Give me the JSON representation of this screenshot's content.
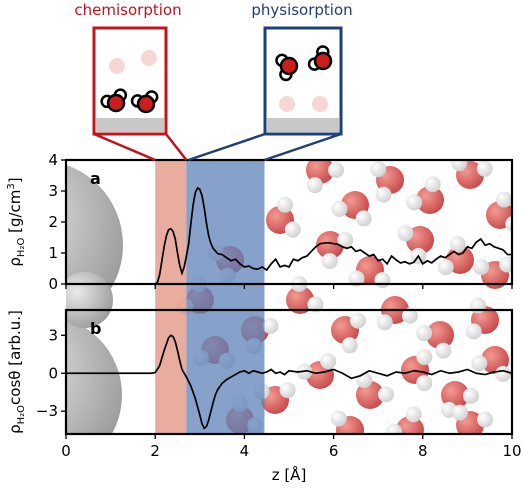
{
  "insets": {
    "chemisorption_label": "chemisorption",
    "physisorption_label": "physisorption",
    "chemisorption_color": "#c0141c",
    "physisorption_color": "#1f3f7a"
  },
  "colors": {
    "chem_band": "#e08a78",
    "phys_band": "#5d82b8",
    "line": "#000000",
    "oxygen": "#d03030",
    "hydrogen": "#f2f2f2",
    "surface_atom": "#9c9c9c"
  },
  "chart_data": [
    {
      "type": "line",
      "panel_label": "a",
      "ylabel_main": "ρ",
      "ylabel_sub": "H₂O",
      "ylabel_unit": " [g/cm",
      "ylabel_unit_sup": "3",
      "ylabel_unit_close": "]",
      "xlim": [
        0,
        10
      ],
      "ylim": [
        0,
        4
      ],
      "yticks": [
        "0",
        "1",
        "2",
        "3",
        "4"
      ],
      "bands": [
        {
          "name": "chemisorption",
          "x0": 2.0,
          "x1": 2.7
        },
        {
          "name": "physisorption",
          "x0": 2.7,
          "x1": 4.45
        }
      ],
      "x": [
        2.0,
        2.05,
        2.1,
        2.15,
        2.2,
        2.25,
        2.3,
        2.35,
        2.4,
        2.45,
        2.5,
        2.55,
        2.6,
        2.65,
        2.7,
        2.75,
        2.8,
        2.85,
        2.9,
        2.95,
        3.0,
        3.05,
        3.1,
        3.15,
        3.2,
        3.25,
        3.3,
        3.4,
        3.5,
        3.6,
        3.7,
        3.8,
        3.9,
        4.0,
        4.1,
        4.2,
        4.3,
        4.4,
        4.5,
        4.6,
        4.7,
        4.8,
        4.9,
        5.0,
        5.1,
        5.2,
        5.3,
        5.4,
        5.5,
        5.6,
        5.7,
        5.8,
        5.9,
        6.0,
        6.1,
        6.2,
        6.3,
        6.4,
        6.5,
        6.6,
        6.7,
        6.8,
        6.9,
        7.0,
        7.1,
        7.2,
        7.3,
        7.4,
        7.5,
        7.6,
        7.7,
        7.8,
        7.9,
        8.0,
        8.1,
        8.2,
        8.3,
        8.4,
        8.5,
        8.6,
        8.7,
        8.8,
        8.9,
        9.0,
        9.1,
        9.2,
        9.3,
        9.4,
        9.5,
        9.6,
        9.7,
        9.8,
        9.9,
        10.0
      ],
      "y": [
        0.0,
        0.05,
        0.3,
        0.75,
        1.2,
        1.55,
        1.75,
        1.78,
        1.7,
        1.45,
        1.0,
        0.6,
        0.35,
        0.55,
        0.9,
        1.3,
        1.95,
        2.55,
        2.95,
        3.1,
        3.05,
        2.85,
        2.45,
        1.95,
        1.55,
        1.3,
        1.15,
        0.98,
        0.95,
        0.85,
        0.75,
        0.8,
        0.65,
        0.55,
        0.58,
        0.5,
        0.48,
        0.55,
        0.45,
        0.65,
        0.8,
        0.55,
        0.6,
        0.55,
        0.8,
        0.75,
        0.85,
        0.9,
        1.05,
        1.2,
        1.3,
        1.32,
        1.33,
        1.3,
        1.28,
        1.2,
        1.15,
        1.2,
        1.05,
        1.1,
        1.0,
        0.9,
        0.95,
        0.75,
        0.8,
        0.65,
        0.9,
        0.78,
        0.68,
        0.72,
        0.65,
        0.7,
        0.9,
        0.65,
        0.75,
        0.68,
        0.8,
        0.9,
        0.85,
        0.95,
        1.05,
        0.95,
        1.0,
        1.2,
        1.15,
        1.35,
        1.45,
        1.25,
        1.3,
        1.2,
        1.15,
        1.1,
        0.95,
        0.95
      ]
    },
    {
      "type": "line",
      "panel_label": "b",
      "ylabel_main": "ρ",
      "ylabel_sub": "H₂O",
      "ylabel_unit": "cosθ [arb.u.]",
      "xlabel": "z [Å]",
      "xlim": [
        0,
        10
      ],
      "ylim": [
        -4.8,
        5
      ],
      "yticks": [
        "−3",
        "0",
        "3"
      ],
      "ytick_values": [
        -3,
        0,
        3
      ],
      "xticks": [
        "0",
        "2",
        "4",
        "6",
        "8",
        "10"
      ],
      "xtick_values": [
        0,
        2,
        4,
        6,
        8,
        10
      ],
      "bands": [
        {
          "name": "chemisorption",
          "x0": 2.0,
          "x1": 2.7
        },
        {
          "name": "physisorption",
          "x0": 2.7,
          "x1": 4.45
        }
      ],
      "x": [
        0.0,
        1.9,
        2.0,
        2.1,
        2.2,
        2.3,
        2.35,
        2.4,
        2.45,
        2.5,
        2.55,
        2.6,
        2.7,
        2.8,
        2.9,
        3.0,
        3.05,
        3.1,
        3.15,
        3.2,
        3.25,
        3.3,
        3.35,
        3.4,
        3.5,
        3.6,
        3.7,
        3.8,
        3.9,
        4.0,
        4.1,
        4.2,
        4.3,
        4.4,
        4.5,
        4.6,
        4.7,
        4.8,
        4.9,
        5.0,
        5.2,
        5.4,
        5.6,
        5.8,
        6.0,
        6.2,
        6.4,
        6.6,
        6.8,
        7.0,
        7.2,
        7.4,
        7.6,
        7.8,
        8.0,
        8.2,
        8.4,
        8.6,
        8.8,
        9.0,
        9.2,
        9.4,
        9.6,
        9.8,
        10.0
      ],
      "y": [
        0.0,
        0.0,
        0.05,
        0.6,
        1.8,
        2.8,
        3.0,
        2.9,
        2.5,
        1.8,
        1.0,
        0.3,
        -0.3,
        -1.0,
        -2.0,
        -3.3,
        -4.0,
        -4.35,
        -4.2,
        -3.7,
        -3.0,
        -2.3,
        -1.7,
        -1.3,
        -0.8,
        -0.5,
        -0.3,
        -0.1,
        0.1,
        0.2,
        0.0,
        0.2,
        0.1,
        0.0,
        0.1,
        0.3,
        0.0,
        0.1,
        -0.1,
        0.2,
        0.1,
        0.2,
        0.0,
        0.1,
        0.3,
        0.0,
        -0.4,
        -0.2,
        0.2,
        0.0,
        -0.2,
        0.1,
        0.0,
        0.2,
        0.1,
        -0.1,
        0.2,
        0.0,
        0.1,
        0.3,
        0.0,
        -0.1,
        0.1,
        0.2,
        0.0
      ]
    }
  ]
}
